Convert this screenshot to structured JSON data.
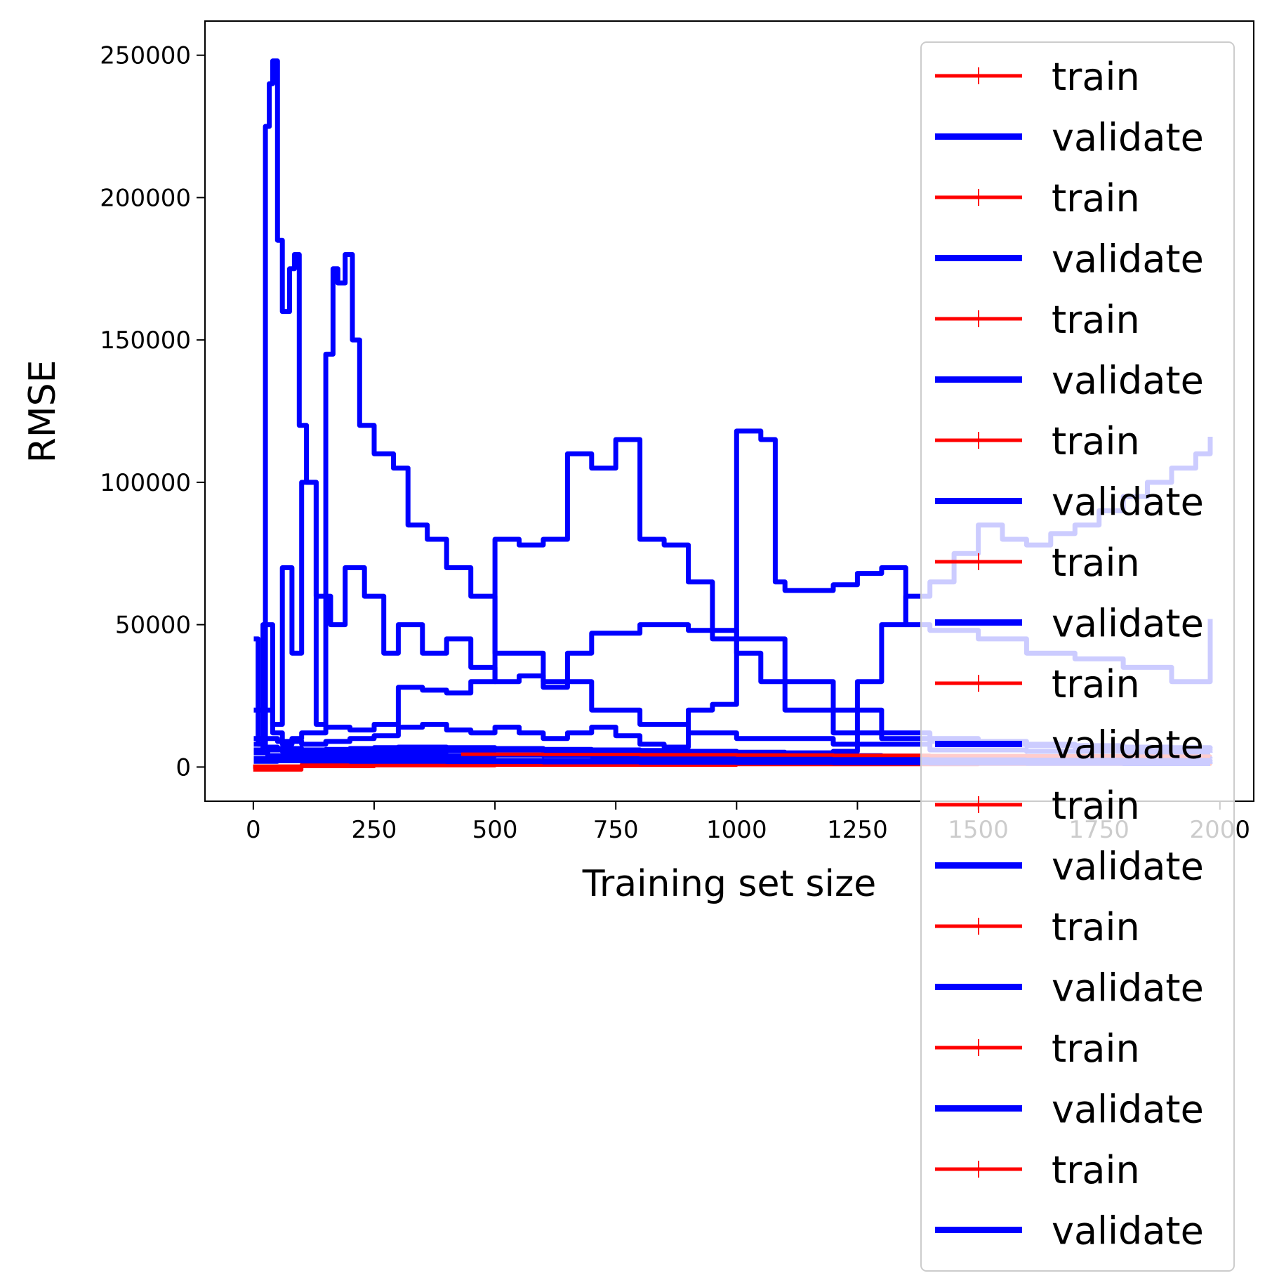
{
  "chart_data": {
    "type": "line",
    "title": "",
    "xlabel": "Training set size",
    "ylabel": "RMSE",
    "xlim": [
      -100,
      2070
    ],
    "ylim": [
      -12000,
      262000
    ],
    "xticks": [
      0,
      250,
      500,
      750,
      1000,
      1250,
      1500,
      1750,
      2000
    ],
    "yticks": [
      0,
      50000,
      100000,
      150000,
      200000,
      250000
    ],
    "xtick_labels": [
      "0",
      "250",
      "500",
      "750",
      "1000",
      "1250",
      "1500",
      "1750",
      "2000"
    ],
    "ytick_labels": [
      "0",
      "50000",
      "100000",
      "150000",
      "200000",
      "250000"
    ],
    "grid": false,
    "legend_position": "upper-right",
    "legend": [
      "train",
      "validate",
      "train",
      "validate",
      "train",
      "validate",
      "train",
      "validate",
      "train",
      "validate",
      "train",
      "validate",
      "train",
      "validate",
      "train",
      "validate",
      "train",
      "validate",
      "train",
      "validate"
    ],
    "series_colors": {
      "train": "#ff0000",
      "validate": "#0000ff"
    },
    "series": [
      {
        "name": "train",
        "color": "#ff0000",
        "x": [
          0,
          100,
          250,
          500,
          1000,
          1500,
          1980
        ],
        "y": [
          0,
          300,
          800,
          1100,
          1400,
          1600,
          1800
        ]
      },
      {
        "name": "validate",
        "color": "#0000ff",
        "x": [
          1,
          10,
          25,
          33,
          40,
          50,
          60,
          75,
          85,
          95,
          110,
          130,
          150,
          165,
          175,
          190,
          205,
          220,
          250,
          290,
          320,
          360,
          400,
          450,
          500,
          600,
          700,
          800,
          900,
          1000,
          1200,
          1400,
          1600,
          1800,
          1980
        ],
        "y": [
          45000,
          8000,
          225000,
          240000,
          248000,
          185000,
          160000,
          175000,
          180000,
          120000,
          100000,
          15000,
          145000,
          175000,
          170000,
          180000,
          150000,
          120000,
          110000,
          105000,
          85000,
          80000,
          70000,
          60000,
          40000,
          30000,
          20000,
          15000,
          12000,
          10000,
          8000,
          6000,
          5500,
          5200,
          5000
        ]
      },
      {
        "name": "train",
        "color": "#ff0000",
        "x": [
          0,
          100,
          250,
          500,
          1000,
          1500,
          1980
        ],
        "y": [
          0,
          500,
          1000,
          1300,
          1600,
          1800,
          1900
        ]
      },
      {
        "name": "validate",
        "color": "#0000ff",
        "x": [
          1,
          20,
          40,
          60,
          80,
          100,
          130,
          160,
          190,
          230,
          270,
          300,
          350,
          400,
          450,
          500,
          550,
          600,
          650,
          700,
          800,
          900,
          1000,
          1100,
          1200,
          1300,
          1400,
          1500,
          1600,
          1700,
          1800,
          1900,
          1980
        ],
        "y": [
          20000,
          50000,
          15000,
          70000,
          40000,
          100000,
          60000,
          50000,
          70000,
          60000,
          40000,
          50000,
          40000,
          45000,
          35000,
          30000,
          32000,
          28000,
          40000,
          47000,
          50000,
          48000,
          45000,
          30000,
          20000,
          12000,
          10000,
          9000,
          8000,
          7500,
          7000,
          6800,
          6500
        ]
      },
      {
        "name": "train",
        "color": "#ff0000",
        "x": [
          0,
          100,
          250,
          500,
          1000,
          1500,
          1980
        ],
        "y": [
          200,
          800,
          1200,
          1500,
          1800,
          2000,
          2100
        ]
      },
      {
        "name": "validate",
        "color": "#0000ff",
        "x": [
          1,
          20,
          40,
          60,
          80,
          100,
          150,
          200,
          250,
          300,
          350,
          400,
          450,
          500,
          550,
          600,
          650,
          700,
          750,
          800,
          850,
          900,
          950,
          1000,
          1050,
          1100,
          1200,
          1300,
          1400,
          1500,
          1600,
          1700,
          1800,
          1900,
          1980
        ],
        "y": [
          10000,
          20000,
          12000,
          8000,
          10000,
          12000,
          14000,
          13000,
          15000,
          28000,
          27000,
          26000,
          30000,
          80000,
          78000,
          80000,
          110000,
          105000,
          115000,
          80000,
          78000,
          65000,
          45000,
          40000,
          30000,
          20000,
          12000,
          10000,
          9000,
          8000,
          7500,
          7000,
          6500,
          6000,
          5800
        ]
      },
      {
        "name": "train",
        "color": "#ff0000",
        "x": [
          0,
          100,
          250,
          500,
          1000,
          1500,
          1980
        ],
        "y": [
          100,
          600,
          900,
          1200,
          1500,
          1700,
          1800
        ]
      },
      {
        "name": "validate",
        "color": "#0000ff",
        "x": [
          1,
          20,
          50,
          100,
          150,
          200,
          250,
          300,
          350,
          400,
          450,
          500,
          550,
          600,
          650,
          700,
          750,
          800,
          850,
          900,
          950,
          1000,
          1050,
          1080,
          1100,
          1200,
          1250,
          1300,
          1350,
          1400,
          1500,
          1600,
          1700,
          1800,
          1900,
          1980
        ],
        "y": [
          8000,
          10000,
          9000,
          8000,
          9000,
          10000,
          11000,
          14000,
          15000,
          13000,
          12000,
          14000,
          12000,
          10000,
          12000,
          14000,
          11000,
          8000,
          7000,
          20000,
          22000,
          118000,
          115000,
          65000,
          62000,
          64000,
          68000,
          70000,
          50000,
          48000,
          45000,
          40000,
          38000,
          35000,
          30000,
          52000
        ]
      },
      {
        "name": "train",
        "color": "#ff0000",
        "x": [
          0,
          100,
          250,
          500,
          1000,
          1500,
          1980
        ],
        "y": [
          300,
          900,
          1400,
          1700,
          2000,
          2200,
          2300
        ]
      },
      {
        "name": "validate",
        "color": "#0000ff",
        "x": [
          1,
          20,
          50,
          100,
          150,
          200,
          250,
          300,
          400,
          500,
          600,
          700,
          800,
          900,
          1000,
          1100,
          1200,
          1250,
          1300,
          1350,
          1400,
          1450,
          1500,
          1550,
          1600,
          1650,
          1700,
          1750,
          1800,
          1850,
          1900,
          1950,
          1980
        ],
        "y": [
          6000,
          7000,
          6500,
          6000,
          6200,
          6500,
          6800,
          7000,
          6800,
          6500,
          6200,
          6000,
          5800,
          5500,
          5200,
          5000,
          5500,
          30000,
          50000,
          60000,
          65000,
          75000,
          85000,
          80000,
          78000,
          82000,
          85000,
          90000,
          95000,
          100000,
          105000,
          110000,
          116000
        ]
      },
      {
        "name": "train",
        "color": "#ff0000",
        "x": [
          0,
          100,
          250,
          500,
          1000,
          1500,
          1980
        ],
        "y": [
          0,
          400,
          700,
          1000,
          1300,
          1500,
          1600
        ]
      },
      {
        "name": "validate",
        "color": "#0000ff",
        "x": [
          1,
          30,
          60,
          100,
          200,
          300,
          400,
          500,
          600,
          700,
          800,
          900,
          1000,
          1100,
          1200,
          1300,
          1400,
          1500,
          1600,
          1700,
          1800,
          1900,
          1980
        ],
        "y": [
          5000,
          6000,
          5500,
          5000,
          5200,
          5500,
          5800,
          6000,
          5600,
          5200,
          5000,
          4800,
          4500,
          4200,
          4000,
          3800,
          3600,
          3500,
          3400,
          3300,
          3200,
          3100,
          3000
        ]
      },
      {
        "name": "train",
        "color": "#ff0000",
        "x": [
          0,
          100,
          250,
          500,
          1000,
          1500,
          1980
        ],
        "y": [
          100,
          500,
          900,
          1100,
          1400,
          1600,
          1700
        ]
      },
      {
        "name": "validate",
        "color": "#0000ff",
        "x": [
          1,
          30,
          60,
          100,
          200,
          300,
          400,
          500,
          600,
          700,
          800,
          900,
          1000,
          1100,
          1200,
          1300,
          1400,
          1500,
          1600,
          1700,
          1800,
          1900,
          1980
        ],
        "y": [
          3000,
          4000,
          3800,
          3500,
          3600,
          3800,
          4000,
          4200,
          4000,
          3800,
          3600,
          3400,
          3200,
          3000,
          2900,
          2800,
          2700,
          2600,
          2500,
          2400,
          2300,
          2200,
          2100
        ]
      },
      {
        "name": "train",
        "color": "#ff0000",
        "x": [
          430,
          600,
          800,
          1000,
          1200,
          1400,
          1600,
          1800,
          1980
        ],
        "y": [
          4500,
          4400,
          4300,
          4200,
          4100,
          4000,
          3900,
          3800,
          3700
        ]
      },
      {
        "name": "validate",
        "color": "#0000ff",
        "x": [
          1,
          50,
          100,
          200,
          300,
          400,
          500,
          600,
          800,
          1000,
          1200,
          1400,
          1600,
          1800,
          1980
        ],
        "y": [
          2500,
          3000,
          2800,
          2600,
          2500,
          2400,
          2300,
          2200,
          2100,
          2000,
          1900,
          1800,
          1700,
          1600,
          1500
        ]
      },
      {
        "name": "train",
        "color": "#ff0000",
        "x": [
          0,
          100,
          250,
          500,
          1000,
          1500,
          1980
        ],
        "y": [
          -1000,
          200,
          500,
          700,
          900,
          1000,
          1100
        ]
      },
      {
        "name": "validate",
        "color": "#0000ff",
        "x": [
          1,
          50,
          100,
          200,
          400,
          600,
          800,
          1000,
          1200,
          1400,
          1600,
          1800,
          1980
        ],
        "y": [
          2000,
          2200,
          2100,
          2000,
          1900,
          1800,
          1700,
          1600,
          1500,
          1400,
          1300,
          1200,
          1100
        ]
      }
    ]
  }
}
